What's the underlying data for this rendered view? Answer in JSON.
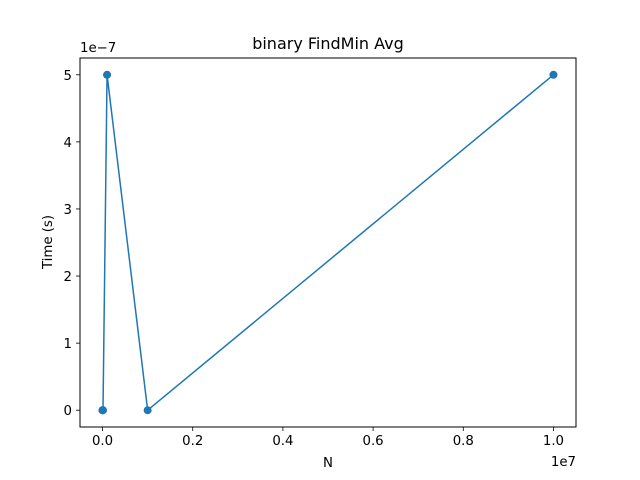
{
  "chart_data": {
    "type": "line",
    "title": "binary FindMin Avg",
    "xlabel": "N",
    "ylabel": "Time (s)",
    "x_offset_label": "1e7",
    "y_offset_label": "1e−7",
    "x_scale": 10000000,
    "y_scale": 1e-07,
    "xlim": [
      -500000,
      10500000
    ],
    "ylim": [
      -2.5e-08,
      5.25e-07
    ],
    "x_ticks": [
      0,
      2000000,
      4000000,
      6000000,
      8000000,
      10000000
    ],
    "x_tick_labels": [
      "0.0",
      "0.2",
      "0.4",
      "0.6",
      "0.8",
      "1.0"
    ],
    "y_ticks": [
      0,
      1e-07,
      2e-07,
      3e-07,
      4e-07,
      5e-07
    ],
    "y_tick_labels": [
      "0",
      "1",
      "2",
      "3",
      "4",
      "5"
    ],
    "grid": false,
    "series": [
      {
        "x": [
          10,
          100,
          1000,
          10000,
          100000,
          1000000,
          10000000
        ],
        "y": [
          0,
          0,
          0,
          0,
          5e-07,
          0,
          5e-07
        ],
        "color": "#1f77b4",
        "marker": "circle"
      }
    ]
  }
}
